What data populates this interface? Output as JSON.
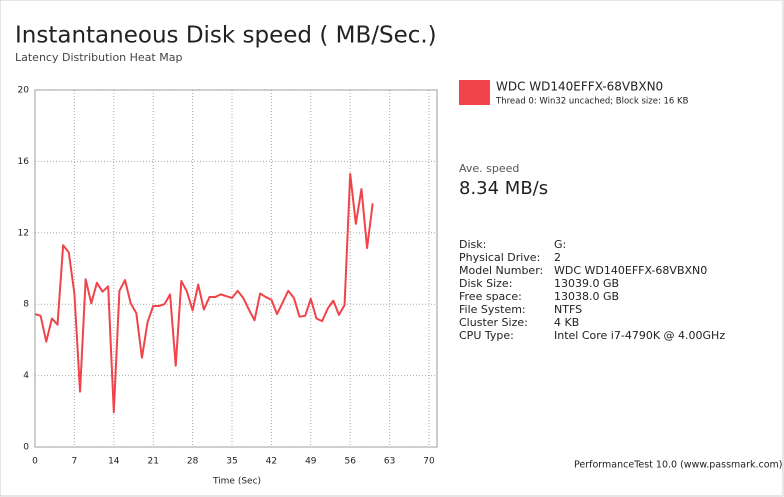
{
  "chart_data": {
    "type": "line",
    "title": "Instantaneous Disk speed ( MB/Sec.)",
    "subtitle": "Latency Distribution Heat Map",
    "x_label": "Time (Sec)",
    "x": [
      0,
      1,
      2,
      3,
      4,
      5,
      6,
      7,
      8,
      9,
      10,
      11,
      12,
      13,
      14,
      15,
      16,
      17,
      18,
      19,
      20,
      21,
      22,
      23,
      24,
      25,
      26,
      27,
      28,
      29,
      30,
      31,
      32,
      33,
      34,
      35,
      36,
      37,
      38,
      39,
      40,
      41,
      42,
      43,
      44,
      45,
      46,
      47,
      48,
      49,
      50,
      51,
      52,
      53,
      54,
      55,
      56,
      57,
      58,
      59,
      60
    ],
    "series": [
      {
        "name": "WDC WD140EFFX-68VBXN0",
        "description": "Thread 0: Win32 uncached; Block size: 16 KB",
        "color": "#f0434a",
        "values": [
          7.45,
          7.35,
          5.9,
          7.2,
          6.85,
          11.3,
          10.9,
          8.6,
          3.1,
          9.4,
          8.05,
          9.2,
          8.7,
          9.0,
          1.95,
          8.75,
          9.35,
          8.05,
          7.5,
          5.0,
          7.0,
          7.9,
          7.9,
          8.0,
          8.55,
          4.55,
          9.3,
          8.7,
          7.65,
          9.1,
          7.7,
          8.4,
          8.4,
          8.55,
          8.45,
          8.35,
          8.75,
          8.35,
          7.7,
          7.1,
          8.6,
          8.4,
          8.25,
          7.45,
          8.1,
          8.75,
          8.35,
          7.3,
          7.35,
          8.3,
          7.2,
          7.05,
          7.75,
          8.2,
          7.4,
          7.95,
          15.3,
          12.5,
          14.45,
          11.15,
          13.65
        ]
      }
    ],
    "xlim": [
      0,
      70
    ],
    "xticks": [
      0,
      7,
      14,
      21,
      28,
      35,
      42,
      49,
      56,
      63,
      70
    ],
    "ylim": [
      0,
      20
    ],
    "yticks": [
      0,
      4,
      8,
      12,
      16,
      20
    ],
    "grid": true
  },
  "panel": {
    "avg_label": "Ave. speed",
    "avg_value": "8.34 MB/s",
    "info": [
      [
        "Disk:",
        "G:"
      ],
      [
        "Physical Drive:",
        "2"
      ],
      [
        "Model Number:",
        "WDC WD140EFFX-68VBXN0"
      ],
      [
        "Disk Size:",
        "13039.0 GB"
      ],
      [
        "Free space:",
        "13038.0 GB"
      ],
      [
        "File System:",
        "NTFS"
      ],
      [
        "Cluster Size:",
        "4 KB"
      ],
      [
        "CPU Type:",
        "Intel Core i7-4790K @ 4.00GHz"
      ]
    ],
    "footer": "PerformanceTest 10.0 (www.passmark.com)"
  }
}
